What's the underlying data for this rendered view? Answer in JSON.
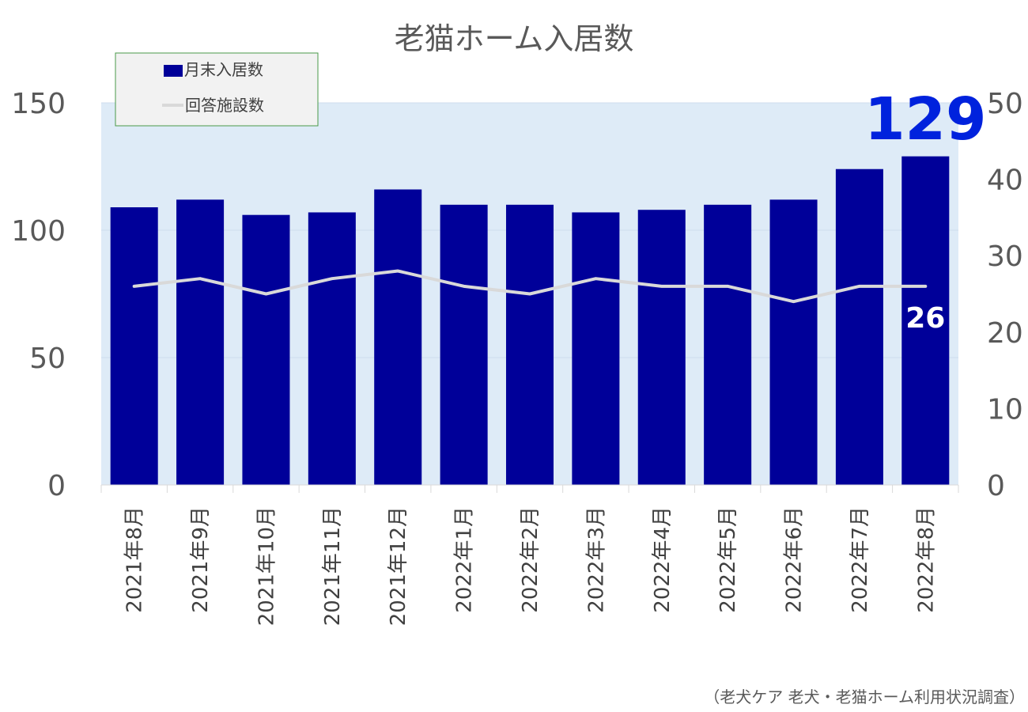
{
  "chart_data": {
    "type": "bar",
    "title": "老猫ホーム入居数",
    "categories": [
      "2021年8月",
      "2021年9月",
      "2021年10月",
      "2021年11月",
      "2021年12月",
      "2022年1月",
      "2022年2月",
      "2022年3月",
      "2022年4月",
      "2022年5月",
      "2022年6月",
      "2022年7月",
      "2022年8月"
    ],
    "series": [
      {
        "name": "月末入居数",
        "type": "bar",
        "axis": "left",
        "color": "#000099",
        "values": [
          109,
          112,
          106,
          107,
          116,
          110,
          110,
          107,
          108,
          110,
          112,
          124,
          129
        ]
      },
      {
        "name": "回答施設数",
        "type": "line",
        "axis": "right",
        "color": "#d9d9d9",
        "values": [
          26,
          27,
          25,
          27,
          28,
          26,
          25,
          27,
          26,
          26,
          24,
          26,
          26
        ]
      }
    ],
    "left_axis": {
      "ylim": [
        0,
        150
      ],
      "ticks": [
        0,
        50,
        100,
        150
      ]
    },
    "right_axis": {
      "ylim": [
        0,
        50
      ],
      "ticks": [
        0,
        10,
        20,
        30,
        40,
        50
      ]
    },
    "data_labels": {
      "bar_last": "129",
      "line_last": "26"
    },
    "legend_position": "top-left",
    "plot_background": "#deebf7",
    "source": "（老犬ケア 老犬・老猫ホーム利用状況調査）"
  }
}
